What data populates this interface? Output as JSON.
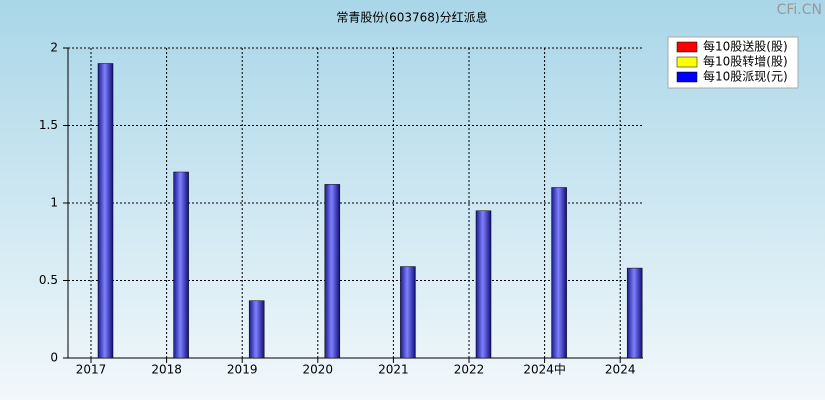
{
  "chart_data": {
    "type": "bar",
    "title": "常青股份(603768)分红派息",
    "watermark": "CFi.CN",
    "categories": [
      "2017",
      "2018",
      "2019",
      "2020",
      "2021",
      "2022",
      "2024中",
      "2024"
    ],
    "series": [
      {
        "name": "每10股送股(股)",
        "color": "#ff0000",
        "values": [
          null,
          null,
          null,
          null,
          null,
          null,
          null,
          null
        ]
      },
      {
        "name": "每10股转增(股)",
        "color": "#ffff00",
        "values": [
          null,
          null,
          null,
          null,
          null,
          null,
          null,
          null
        ]
      },
      {
        "name": "每10股派现(元)",
        "color": "#0000ff",
        "values": [
          1.9,
          1.2,
          0.37,
          1.12,
          0.59,
          0.95,
          1.1,
          0.58
        ]
      }
    ],
    "ylim": [
      0,
      2
    ],
    "yticks": [
      0,
      0.5,
      1,
      1.5,
      2
    ],
    "grid": true
  }
}
